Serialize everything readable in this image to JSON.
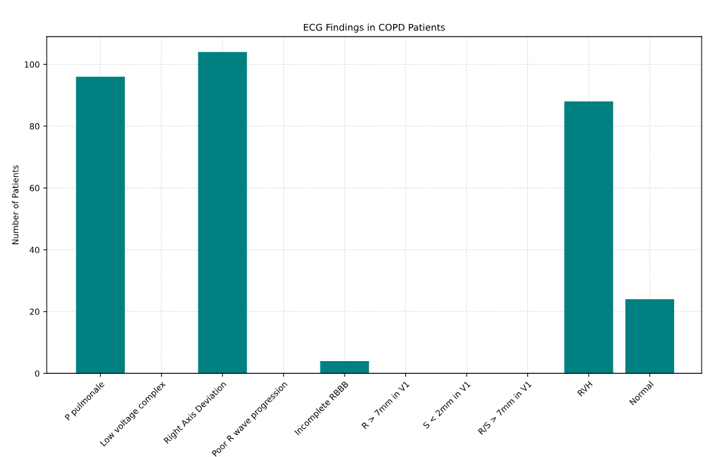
{
  "chart_data": {
    "type": "bar",
    "title": "ECG Findings in COPD Patients",
    "ylabel": "Number of Patients",
    "categories": [
      "P pulmonale",
      "Low voltage complex",
      "Right Axis Deviation",
      "Poor R wave progression",
      "Incomplete RBBB",
      "R > 7mm in V1",
      "S < 2mm in V1",
      "R/S > 7mm in V1",
      "RVH",
      "Normal"
    ],
    "values": [
      96,
      0,
      104,
      0,
      4,
      0,
      0,
      0,
      88,
      24
    ],
    "color": "#008080",
    "ylim": [
      0,
      109
    ],
    "yticks": [
      0,
      20,
      40,
      60,
      80,
      100
    ],
    "grid": true,
    "legend": false
  }
}
